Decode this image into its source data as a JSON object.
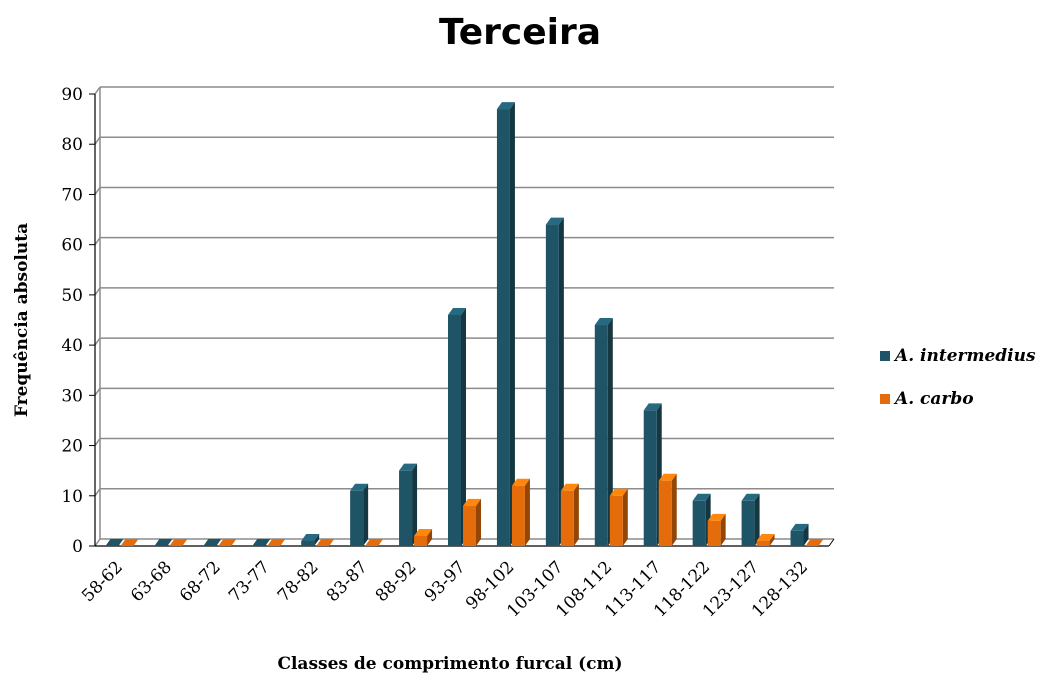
{
  "chart_data": {
    "type": "bar",
    "title": "Terceira",
    "xlabel": "Classes de comprimento furcal (cm)",
    "ylabel": "Frequência absoluta",
    "ylim": [
      0,
      90
    ],
    "yticks": [
      0,
      10,
      20,
      30,
      40,
      50,
      60,
      70,
      80,
      90
    ],
    "grid": true,
    "legend_position": "right",
    "categories": [
      "58-62",
      "63-68",
      "68-72",
      "73-77",
      "78-82",
      "83-87",
      "88-92",
      "93-97",
      "98-102",
      "103-107",
      "108-112",
      "113-117",
      "118-122",
      "123-127",
      "128-132"
    ],
    "series": [
      {
        "name": "A. intermedius",
        "color": "#1F5466",
        "values": [
          0,
          0,
          0,
          0,
          1,
          11,
          15,
          46,
          87,
          64,
          44,
          27,
          9,
          9,
          3
        ]
      },
      {
        "name": "A. carbo",
        "color": "#E46C0A",
        "values": [
          0,
          0,
          0,
          0,
          0,
          0,
          2,
          8,
          12,
          11,
          10,
          13,
          5,
          1,
          0
        ]
      }
    ]
  }
}
